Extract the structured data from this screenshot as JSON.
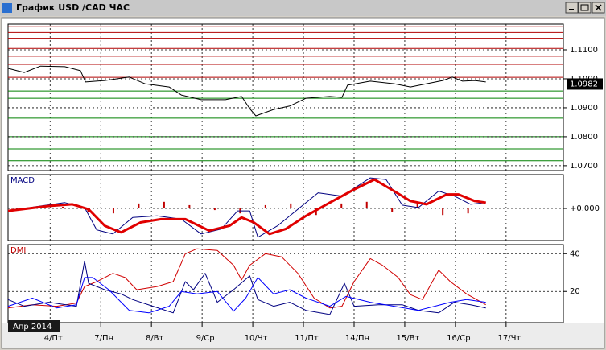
{
  "window": {
    "title": "График USD /CAD ЧАС"
  },
  "chart_data": [
    {
      "type": "line",
      "x_label": "Апр 2014",
      "xlim": [
        -0.83,
        10.13
      ],
      "xticks": [
        {
          "value": 0,
          "label": "4/Пт"
        },
        {
          "value": 1,
          "label": "7/Пн"
        },
        {
          "value": 2,
          "label": "8/Вт"
        },
        {
          "value": 3,
          "label": "9/Ср"
        },
        {
          "value": 4,
          "label": "10/Чт"
        },
        {
          "value": 5,
          "label": "11/Пт"
        },
        {
          "value": 6,
          "label": "14/Пн"
        },
        {
          "value": 7,
          "label": "15/Вт"
        },
        {
          "value": 8,
          "label": "16/Ср"
        },
        {
          "value": 9,
          "label": "17/Чт"
        }
      ],
      "ylim": [
        1.0683,
        1.1189
      ],
      "yticks": [
        {
          "value": 1.07,
          "label": "1.0700"
        },
        {
          "value": 1.08,
          "label": "1.0800"
        },
        {
          "value": 1.09,
          "label": "1.0900"
        },
        {
          "value": 1.1,
          "label": "1.1000"
        },
        {
          "value": 1.11,
          "label": "1.1100"
        }
      ],
      "grid": true,
      "last_value": {
        "value": 1.0982,
        "label": "1.0982"
      },
      "levels": [
        {
          "color": "#b00000",
          "values": [
            1.118,
            1.116,
            1.114,
            1.1105,
            1.1078,
            1.105,
            1.1005
          ]
        },
        {
          "color": "#008000",
          "values": [
            1.0958,
            1.0933,
            1.0864,
            1.08,
            1.0758,
            1.0717
          ]
        }
      ],
      "series": [
        {
          "color": "#000000",
          "line_width": 1,
          "x": [
            -0.83,
            -0.51,
            -0.19,
            0.29,
            0.6,
            0.7,
            1.08,
            1.56,
            1.87,
            2.35,
            2.59,
            2.98,
            3.46,
            3.78,
            3.94,
            4.06,
            4.41,
            4.73,
            5.05,
            5.52,
            5.76,
            5.87,
            6.32,
            6.79,
            7.11,
            7.43,
            7.75,
            7.94,
            8.14,
            8.38,
            8.6
          ],
          "values": [
            1.1036,
            1.1022,
            1.1044,
            1.1042,
            1.1028,
            1.0989,
            1.0994,
            1.1006,
            1.0983,
            1.0972,
            1.0944,
            1.0928,
            1.0928,
            1.0939,
            1.0897,
            1.0872,
            1.0894,
            1.0906,
            1.0933,
            1.0939,
            1.0936,
            1.0978,
            1.0992,
            1.0983,
            1.0972,
            1.0983,
            1.0994,
            1.1006,
            1.0992,
            1.0994,
            1.0989
          ]
        }
      ]
    },
    {
      "type": "line",
      "title": "MACD",
      "title_color": "#000080",
      "ylim": [
        -0.00195,
        0.00205
      ],
      "yticks": [
        {
          "value": 0,
          "label": "+0.000"
        }
      ],
      "grid": true,
      "series": [
        {
          "type": "bar",
          "color": "#c00000",
          "x": [
            -0.75,
            -0.25,
            0.25,
            0.75,
            1.25,
            1.75,
            2.25,
            2.75,
            3.25,
            3.75,
            4.25,
            4.75,
            5.25,
            5.75,
            6.25,
            6.75,
            7.25,
            7.75,
            8.25
          ],
          "values": [
            0,
            0.0001,
            0.0001,
            -0.0002,
            -0.0003,
            0.0003,
            0.0004,
            0.0002,
            -0.0001,
            -0.0003,
            0.0002,
            0.0003,
            -0.0004,
            0.0003,
            0.0004,
            -0.0002,
            0.0003,
            -0.0004,
            -0.0003
          ]
        },
        {
          "color": "#000080",
          "line_width": 1,
          "x": [
            -0.83,
            -0.19,
            0.29,
            0.68,
            0.92,
            1.24,
            1.63,
            2.11,
            2.59,
            2.98,
            3.38,
            3.7,
            3.94,
            4.1,
            4.49,
            4.97,
            5.29,
            5.76,
            6.32,
            6.63,
            6.95,
            7.27,
            7.67,
            7.98,
            8.3,
            8.6
          ],
          "values": [
            -0.00015,
            0.00015,
            0.00035,
            5e-05,
            -0.0013,
            -0.00155,
            -0.00055,
            -0.00045,
            -0.00065,
            -0.00155,
            -0.00125,
            -0.00015,
            -0.00015,
            -0.00175,
            -0.00105,
            0.00015,
            0.00095,
            0.00075,
            0.00185,
            0.00175,
            0.0002,
            5e-05,
            0.00105,
            0.00075,
            0.00025,
            0.00035
          ]
        },
        {
          "color": "#e00000",
          "line_width": 3,
          "x": [
            -0.83,
            -0.03,
            0.44,
            0.76,
            1.08,
            1.4,
            1.79,
            2.19,
            2.67,
            3.14,
            3.54,
            3.78,
            4.02,
            4.33,
            4.65,
            5.05,
            5.52,
            6.0,
            6.4,
            6.79,
            7.11,
            7.43,
            7.83,
            8.06,
            8.38,
            8.6
          ],
          "values": [
            -0.00015,
            0.00015,
            0.00025,
            -5e-05,
            -0.00105,
            -0.00145,
            -0.00085,
            -0.00065,
            -0.00065,
            -0.00135,
            -0.00105,
            -0.00055,
            -0.00085,
            -0.00155,
            -0.00125,
            -0.00045,
            0.00035,
            0.00115,
            0.00175,
            0.00105,
            0.00045,
            0.00025,
            0.00085,
            0.00085,
            0.00045,
            0.00035
          ]
        }
      ]
    },
    {
      "type": "line",
      "title": "DMI",
      "title_color": "#c00000",
      "ylim": [
        3.5,
        44.8
      ],
      "yticks": [
        20,
        40
      ],
      "grid": true,
      "series": [
        {
          "color": "#d00000",
          "line_width": 1,
          "x": [
            -0.83,
            -0.35,
            0.13,
            0.52,
            0.68,
            0.92,
            1.24,
            1.48,
            1.71,
            2.11,
            2.43,
            2.67,
            2.9,
            3.3,
            3.62,
            3.78,
            3.94,
            4.25,
            4.57,
            4.89,
            5.21,
            5.52,
            5.76,
            6.0,
            6.32,
            6.56,
            6.87,
            7.11,
            7.35,
            7.67,
            7.9,
            8.22,
            8.6
          ],
          "values": [
            11.3,
            13.0,
            12.2,
            13.9,
            22.6,
            25.2,
            29.6,
            27.4,
            20.9,
            22.6,
            25.2,
            40.0,
            42.6,
            41.7,
            33.9,
            26.1,
            33.9,
            40.0,
            38.3,
            29.6,
            16.5,
            11.3,
            12.2,
            25.2,
            37.4,
            33.9,
            27.4,
            18.3,
            15.7,
            31.3,
            25.2,
            18.7,
            13.0
          ]
        },
        {
          "color": "#000080",
          "line_width": 1,
          "x": [
            -0.83,
            -0.51,
            -0.03,
            0.52,
            0.68,
            0.76,
            1.08,
            1.4,
            1.63,
            2.03,
            2.43,
            2.67,
            2.83,
            3.06,
            3.3,
            3.62,
            3.94,
            4.1,
            4.41,
            4.73,
            5.05,
            5.52,
            5.81,
            6.0,
            6.48,
            6.95,
            7.27,
            7.67,
            7.98,
            8.3,
            8.6
          ],
          "values": [
            15.7,
            12.2,
            14.3,
            12.2,
            36.1,
            24.3,
            20.9,
            18.7,
            15.7,
            12.2,
            8.7,
            25.2,
            20.9,
            29.6,
            14.3,
            20.9,
            28.3,
            15.7,
            12.2,
            14.3,
            10.0,
            7.8,
            24.3,
            12.2,
            13.0,
            13.0,
            10.0,
            8.7,
            14.3,
            13.0,
            11.3
          ]
        },
        {
          "color": "#0000ff",
          "line_width": 1,
          "x": [
            -0.83,
            -0.35,
            0.13,
            0.52,
            0.68,
            0.84,
            1.16,
            1.56,
            1.95,
            2.35,
            2.59,
            2.9,
            3.3,
            3.62,
            3.86,
            4.1,
            4.41,
            4.73,
            5.05,
            5.52,
            5.84,
            6.32,
            6.79,
            7.27,
            7.59,
            7.9,
            8.22,
            8.6
          ],
          "values": [
            12.2,
            16.5,
            11.3,
            13.0,
            27.4,
            27.4,
            20.9,
            10.0,
            8.7,
            12.2,
            20.0,
            18.7,
            20.0,
            9.6,
            16.5,
            27.4,
            18.7,
            20.9,
            16.5,
            12.2,
            17.4,
            14.3,
            12.2,
            10.0,
            12.2,
            14.3,
            15.7,
            14.3
          ]
        }
      ]
    }
  ]
}
